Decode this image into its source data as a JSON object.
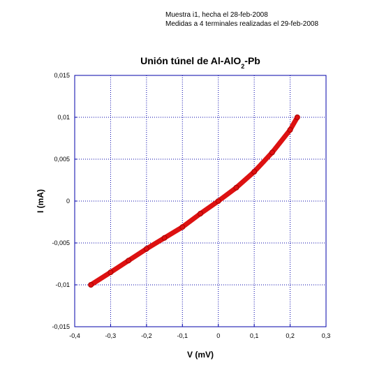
{
  "chart_data": {
    "type": "line",
    "title_parts": [
      "Unión túnel de Al-AlO",
      "2",
      "-Pb"
    ],
    "annotations": [
      "Muestra i1, hecha el 28-feb-2008",
      "Medidas a 4 terminales realizadas el 29-feb-2008"
    ],
    "x_label": "V (mV)",
    "y_label": "I (mA)",
    "x": [
      -0.355,
      -0.3,
      -0.25,
      -0.2,
      -0.15,
      -0.1,
      -0.05,
      0,
      0.05,
      0.1,
      0.15,
      0.2,
      0.22
    ],
    "series": [
      {
        "color": "#dd1111",
        "values": [
          -0.01,
          -0.0085,
          -0.0071,
          -0.0057,
          -0.0044,
          -0.0031,
          -0.0015,
          0,
          0.0016,
          0.0035,
          0.0058,
          0.0085,
          0.01
        ]
      }
    ],
    "xlim": [
      -0.4,
      0.3
    ],
    "xticks": [
      {
        "value": -0.4,
        "label": "-0,4"
      },
      {
        "value": -0.3,
        "label": "-0,3"
      },
      {
        "value": -0.2,
        "label": "-0,2"
      },
      {
        "value": -0.1,
        "label": "-0,1"
      },
      0,
      {
        "value": 0.1,
        "label": "0,1"
      },
      {
        "value": 0.2,
        "label": "0,2"
      },
      {
        "value": 0.3,
        "label": "0,3"
      }
    ],
    "ylim": [
      -0.015,
      0.015
    ],
    "yticks": [
      {
        "value": -0.015,
        "label": "-0,015"
      },
      {
        "value": -0.01,
        "label": "-0,01"
      },
      {
        "value": -0.005,
        "label": "-0,005"
      },
      0,
      {
        "value": 0.005,
        "label": "0,005"
      },
      {
        "value": 0.01,
        "label": "0,01"
      },
      {
        "value": 0.015,
        "label": "0,015"
      }
    ],
    "grid": true
  }
}
